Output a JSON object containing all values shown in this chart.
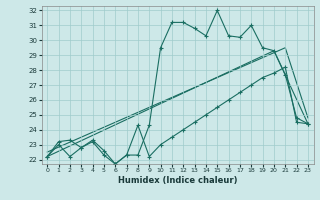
{
  "xlabel": "Humidex (Indice chaleur)",
  "bg_color": "#cde8e8",
  "grid_color": "#a0cccc",
  "line_color": "#1a6e62",
  "x_min": 0,
  "x_max": 23,
  "y_min": 22,
  "y_max": 32,
  "line_max_x": [
    0,
    1,
    2,
    3,
    4,
    5,
    6,
    7,
    8,
    9,
    10,
    11,
    12,
    13,
    14,
    15,
    16,
    17,
    18,
    19,
    20,
    21,
    22,
    23
  ],
  "line_max_y": [
    22.2,
    23.2,
    23.3,
    22.8,
    23.3,
    22.6,
    21.7,
    22.3,
    22.3,
    24.3,
    29.5,
    31.2,
    31.2,
    30.8,
    30.3,
    32.0,
    30.3,
    30.2,
    31.0,
    29.5,
    29.3,
    27.7,
    24.8,
    24.4
  ],
  "line_min_x": [
    0,
    1,
    2,
    3,
    4,
    5,
    6,
    7,
    8,
    9,
    10,
    11,
    12,
    13,
    14,
    15,
    16,
    17,
    18,
    19,
    20,
    21,
    22,
    23
  ],
  "line_min_y": [
    22.2,
    23.0,
    22.2,
    22.8,
    23.2,
    22.3,
    21.7,
    22.3,
    24.3,
    22.2,
    23.0,
    23.5,
    24.0,
    24.5,
    25.0,
    25.5,
    26.0,
    26.5,
    27.0,
    27.5,
    27.8,
    28.2,
    24.5,
    24.4
  ],
  "line_trend1_x": [
    0,
    20,
    23
  ],
  "line_trend1_y": [
    22.2,
    29.3,
    24.4
  ],
  "line_trend2_x": [
    0,
    21,
    23
  ],
  "line_trend2_y": [
    22.5,
    29.5,
    24.8
  ]
}
